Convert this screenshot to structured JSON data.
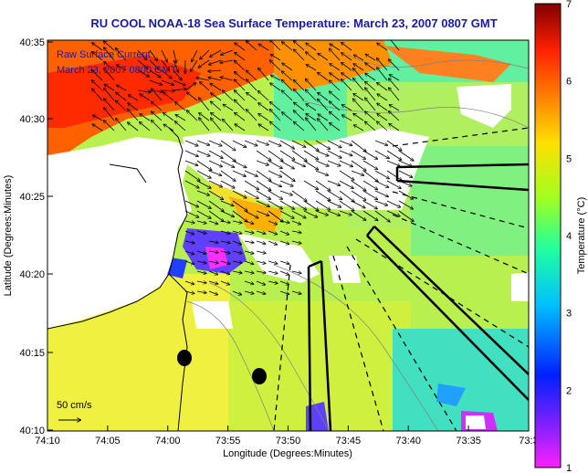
{
  "title": "RU COOL  NOAA-18  Sea Surface Temperature:  March 23, 2007 0807 GMT",
  "legend": {
    "line1": "Raw Surface Current",
    "line2": "March 23, 2007 0800 GMT"
  },
  "scale_label": "50 cm/s",
  "x_axis": {
    "label": "Longitude (Degrees:Minutes)",
    "ticks": [
      "74:10",
      "74:05",
      "74:00",
      "73:55",
      "73:50",
      "73:45",
      "73:40",
      "73:35",
      "73:3"
    ]
  },
  "y_axis": {
    "label": "Latitude (Degrees:Minutes)",
    "ticks": [
      "40:35",
      "40:30",
      "40:25",
      "40:20",
      "40:15",
      "40:10"
    ]
  },
  "colorbar": {
    "label": "Temperature (°C)",
    "ticks": [
      "7",
      "6",
      "5",
      "4",
      "3",
      "2",
      "1"
    ],
    "min": 1,
    "max": 7,
    "colors": [
      "#ff20ff",
      "#9020ff",
      "#0020ff",
      "#00c0ff",
      "#20ffa0",
      "#a0ff20",
      "#ffe000",
      "#ff8000",
      "#ff2000",
      "#800000"
    ]
  },
  "colors": {
    "title": "#1a1aa0",
    "land": "#ffffff",
    "coastline": "#000000"
  }
}
